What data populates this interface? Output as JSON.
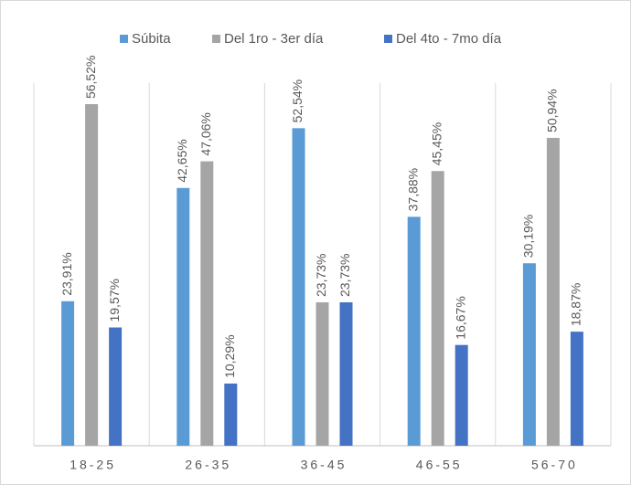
{
  "chart_data": {
    "type": "bar",
    "categories": [
      "18-25",
      "26-35",
      "36-45",
      "46-55",
      "56-70"
    ],
    "series": [
      {
        "name": "Súbita",
        "color": "#5b9bd5",
        "values": [
          23.91,
          42.65,
          52.54,
          37.88,
          30.19
        ],
        "value_labels": [
          "23,91%",
          "42,65%",
          "52,54%",
          "37,88%",
          "30,19%"
        ]
      },
      {
        "name": "Del 1ro - 3er día",
        "color": "#a5a5a5",
        "values": [
          56.52,
          47.06,
          23.73,
          45.45,
          50.94
        ],
        "value_labels": [
          "56,52%",
          "47,06%",
          "23,73%",
          "45,45%",
          "50,94%"
        ]
      },
      {
        "name": "Del 4to - 7mo día",
        "color": "#4472c4",
        "values": [
          19.57,
          10.29,
          23.73,
          16.67,
          18.87
        ],
        "value_labels": [
          "19,57%",
          "10,29%",
          "23,73%",
          "16,67%",
          "18,87%"
        ]
      }
    ],
    "ylim": [
      0,
      60
    ],
    "legend": "top"
  }
}
